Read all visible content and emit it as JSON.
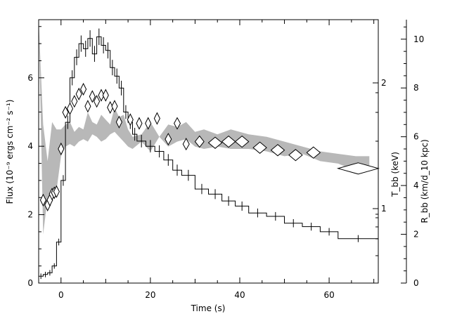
{
  "chart_data": {
    "type": "line",
    "xlabel": "Time (s)",
    "xlim": [
      -5,
      71
    ],
    "x_ticks": [
      "0",
      "20",
      "40",
      "60"
    ],
    "ylabel_left": "Flux (10⁻⁹ ergs cm⁻² s⁻¹)",
    "ylim_left": [
      0,
      7.7
    ],
    "y_ticks_left": [
      "0",
      "2",
      "4",
      "6"
    ],
    "ylabel_tbb": "T_bb (keV)",
    "y_ticks_tbb": [
      "1",
      "2"
    ],
    "ylabel_rbb": "R_bb (km/d_10 kpc)",
    "ylim_rbb": [
      0,
      10.8
    ],
    "y_ticks_rbb": [
      "0",
      "2",
      "4",
      "6",
      "8",
      "10"
    ],
    "series": [
      {
        "kind": "flux-histogram",
        "bins": [
          [
            -5.0,
            -4.0,
            0.2
          ],
          [
            -4.0,
            -3.0,
            0.25
          ],
          [
            -3.0,
            -2.0,
            0.3
          ],
          [
            -2.0,
            -1.0,
            0.5
          ],
          [
            -1.0,
            0.0,
            1.2
          ],
          [
            0.0,
            1.0,
            3.0
          ],
          [
            1.0,
            2.0,
            4.7
          ],
          [
            2.0,
            3.0,
            6.0
          ],
          [
            3.0,
            4.0,
            6.6
          ],
          [
            4.0,
            5.0,
            7.0
          ],
          [
            5.0,
            6.0,
            6.85
          ],
          [
            6.0,
            7.0,
            7.15
          ],
          [
            7.0,
            8.0,
            6.7
          ],
          [
            8.0,
            9.0,
            7.2
          ],
          [
            9.0,
            10.0,
            6.95
          ],
          [
            10.0,
            11.0,
            6.8
          ],
          [
            11.0,
            12.0,
            6.3
          ],
          [
            12.0,
            13.0,
            6.05
          ],
          [
            13.0,
            14.0,
            5.7
          ],
          [
            14.0,
            15.0,
            5.0
          ],
          [
            15.0,
            16.0,
            4.7
          ],
          [
            16.0,
            17.0,
            4.35
          ],
          [
            17.0,
            19.0,
            4.15
          ],
          [
            19.0,
            21.0,
            4.0
          ],
          [
            21.0,
            23.0,
            3.85
          ],
          [
            23.0,
            25.0,
            3.6
          ],
          [
            25.0,
            27.0,
            3.3
          ],
          [
            27.0,
            30.0,
            3.15
          ],
          [
            30.0,
            33.0,
            2.75
          ],
          [
            33.0,
            36.0,
            2.6
          ],
          [
            36.0,
            39.0,
            2.4
          ],
          [
            39.0,
            42.0,
            2.25
          ],
          [
            42.0,
            46.0,
            2.05
          ],
          [
            46.0,
            50.0,
            1.95
          ],
          [
            50.0,
            54.0,
            1.75
          ],
          [
            54.0,
            58.0,
            1.65
          ],
          [
            58.0,
            62.0,
            1.5
          ],
          [
            62.0,
            71.0,
            1.3
          ]
        ]
      },
      {
        "kind": "rbb-band",
        "x": [
          -5.0,
          -4.0,
          -3.0,
          -2.0,
          -1.0,
          0.0,
          1.0,
          2.0,
          3.0,
          4.0,
          5.0,
          6.0,
          7.0,
          8.0,
          9.0,
          10.0,
          11.0,
          12.0,
          13.0,
          14.0,
          15.0,
          16.0,
          18.0,
          20.0,
          22.0,
          24.0,
          26.0,
          28.0,
          30.0,
          32.0,
          35.0,
          38.0,
          42.0,
          46.0,
          50.0,
          54.0,
          58.0,
          62.0,
          66.0,
          69.0
        ],
        "low": [
          10.8,
          2.0,
          3.5,
          3.6,
          3.8,
          5.2,
          5.6,
          5.7,
          5.6,
          5.8,
          5.9,
          5.8,
          6.1,
          6.0,
          5.8,
          5.9,
          6.1,
          6.2,
          6.0,
          5.8,
          5.6,
          5.5,
          5.8,
          5.4,
          6.0,
          5.6,
          5.8,
          5.9,
          5.6,
          5.5,
          5.6,
          5.5,
          5.5,
          5.4,
          5.2,
          5.3,
          5.0,
          4.9,
          4.6,
          4.6
        ],
        "high": [
          10.8,
          6.5,
          5.0,
          6.6,
          6.3,
          6.3,
          6.5,
          6.6,
          6.2,
          6.4,
          6.3,
          7.0,
          6.6,
          6.5,
          6.9,
          6.7,
          6.5,
          7.2,
          6.8,
          6.9,
          6.3,
          6.0,
          6.1,
          6.6,
          6.0,
          6.5,
          6.4,
          6.6,
          6.2,
          6.3,
          6.1,
          6.3,
          6.1,
          6.0,
          5.8,
          5.6,
          5.4,
          5.3,
          5.2,
          5.2
        ]
      },
      {
        "kind": "tbb-diamonds",
        "points": [
          [
            -4.0,
            3.4,
            0.5
          ],
          [
            -3.0,
            3.2,
            0.5
          ],
          [
            -2.5,
            3.4,
            0.5
          ],
          [
            -2.0,
            3.65,
            0.5
          ],
          [
            -1.5,
            3.7,
            0.5
          ],
          [
            -1.0,
            3.75,
            0.5
          ],
          [
            0.0,
            5.5,
            0.5
          ],
          [
            1.0,
            7.0,
            0.5
          ],
          [
            2.0,
            7.15,
            0.5
          ],
          [
            3.0,
            7.45,
            0.5
          ],
          [
            4.0,
            7.75,
            0.5
          ],
          [
            5.0,
            7.95,
            0.5
          ],
          [
            6.0,
            7.25,
            0.5
          ],
          [
            7.0,
            7.65,
            0.5
          ],
          [
            8.0,
            7.45,
            0.5
          ],
          [
            9.0,
            7.7,
            0.5
          ],
          [
            10.0,
            7.7,
            0.5
          ],
          [
            11.0,
            7.2,
            0.5
          ],
          [
            12.0,
            7.25,
            0.5
          ],
          [
            13.0,
            6.6,
            0.5
          ],
          [
            15.5,
            6.7,
            0.6
          ],
          [
            17.5,
            6.55,
            0.6
          ],
          [
            19.5,
            6.55,
            0.6
          ],
          [
            21.5,
            6.75,
            0.6
          ],
          [
            24.0,
            5.9,
            0.7
          ],
          [
            26.0,
            6.55,
            0.7
          ],
          [
            28.0,
            5.7,
            0.7
          ],
          [
            31.0,
            5.8,
            1.0
          ],
          [
            34.5,
            5.75,
            1.5
          ],
          [
            37.5,
            5.8,
            1.5
          ],
          [
            40.5,
            5.8,
            1.5
          ],
          [
            44.5,
            5.55,
            1.5
          ],
          [
            48.5,
            5.45,
            1.5
          ],
          [
            52.5,
            5.25,
            1.5
          ],
          [
            56.5,
            5.35,
            1.5
          ],
          [
            66.5,
            4.7,
            4.5
          ]
        ]
      }
    ],
    "colors": {
      "band": "#b8b8b8",
      "line": "#000000",
      "marker_fill": "#ffffff"
    }
  }
}
